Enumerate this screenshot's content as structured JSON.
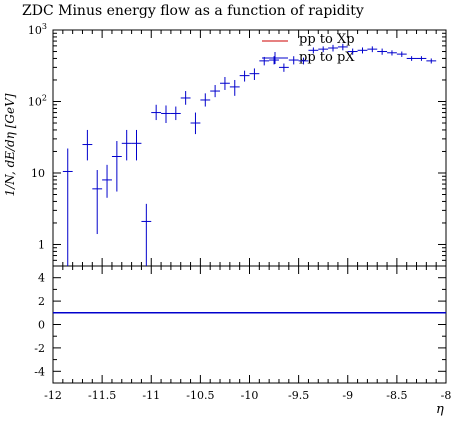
{
  "chart_data": [
    {
      "type": "scatter",
      "title": "ZDC Minus energy flow as a function of rapidity",
      "xlabel": "η",
      "ylabel": "1/N, dE/dη [GeV]",
      "xlim": [
        -12,
        -8
      ],
      "ylim": [
        0.5,
        1000
      ],
      "yscale": "log",
      "x_ticks": [
        "-12",
        "-11.5",
        "-11",
        "-10.5",
        "-10",
        "-9.5",
        "-9",
        "-8.5",
        "-8"
      ],
      "y_ticks": [
        "1",
        "10",
        "10²",
        "10³"
      ],
      "legend": {
        "placement": "top-right",
        "entries": [
          "pp to Xp",
          "pp to pX"
        ]
      },
      "series": [
        {
          "name": "pp to Xp",
          "color": "#cc0000",
          "style": "line",
          "x": [],
          "y": []
        },
        {
          "name": "pp to pX",
          "color": "#0000cc",
          "style": "errorbar",
          "xerr": 0.05,
          "x": [
            -11.85,
            -11.65,
            -11.55,
            -11.45,
            -11.35,
            -11.25,
            -11.15,
            -11.05,
            -10.95,
            -10.85,
            -10.75,
            -10.65,
            -10.55,
            -10.45,
            -10.35,
            -10.25,
            -10.15,
            -10.05,
            -9.95,
            -9.85,
            -9.75,
            -9.65,
            -9.55,
            -9.45,
            -9.35,
            -9.25,
            -9.15,
            -9.05,
            -8.95,
            -8.85,
            -8.75,
            -8.65,
            -8.55,
            -8.45,
            -8.35,
            -8.25,
            -8.15
          ],
          "y": [
            10.5,
            25,
            6,
            8,
            17,
            26,
            26,
            2.1,
            70,
            68,
            68,
            112,
            50,
            105,
            140,
            180,
            160,
            230,
            245,
            370,
            380,
            300,
            380,
            370,
            520,
            540,
            560,
            580,
            500,
            520,
            540,
            500,
            480,
            460,
            400,
            400,
            370
          ],
          "ylow": [
            0.5,
            15,
            1.4,
            4.5,
            5.5,
            15,
            15,
            0.45,
            55,
            50,
            55,
            90,
            35,
            85,
            115,
            145,
            120,
            190,
            200,
            320,
            330,
            260,
            330,
            330,
            470,
            490,
            500,
            520,
            450,
            470,
            490,
            450,
            440,
            420,
            370,
            370,
            340
          ],
          "yhigh": [
            22,
            40,
            11,
            13,
            28,
            40,
            40,
            3.7,
            90,
            88,
            85,
            140,
            70,
            130,
            170,
            220,
            200,
            270,
            290,
            420,
            430,
            340,
            430,
            410,
            570,
            590,
            620,
            640,
            550,
            570,
            590,
            550,
            520,
            500,
            430,
            430,
            400
          ]
        }
      ]
    },
    {
      "type": "line",
      "title": "",
      "xlim": [
        -12,
        -8
      ],
      "ylim": [
        -5,
        5
      ],
      "x_ticks": [
        "-12",
        "-11.5",
        "-11",
        "-10.5",
        "-10",
        "-9.5",
        "-9",
        "-8.5",
        "-8"
      ],
      "y_ticks": [
        "-4",
        "-2",
        "0",
        "2",
        "4"
      ],
      "series": [
        {
          "name": "",
          "color": "#0000cc",
          "x": [
            -12,
            -8
          ],
          "y": [
            1,
            1
          ]
        }
      ]
    }
  ]
}
